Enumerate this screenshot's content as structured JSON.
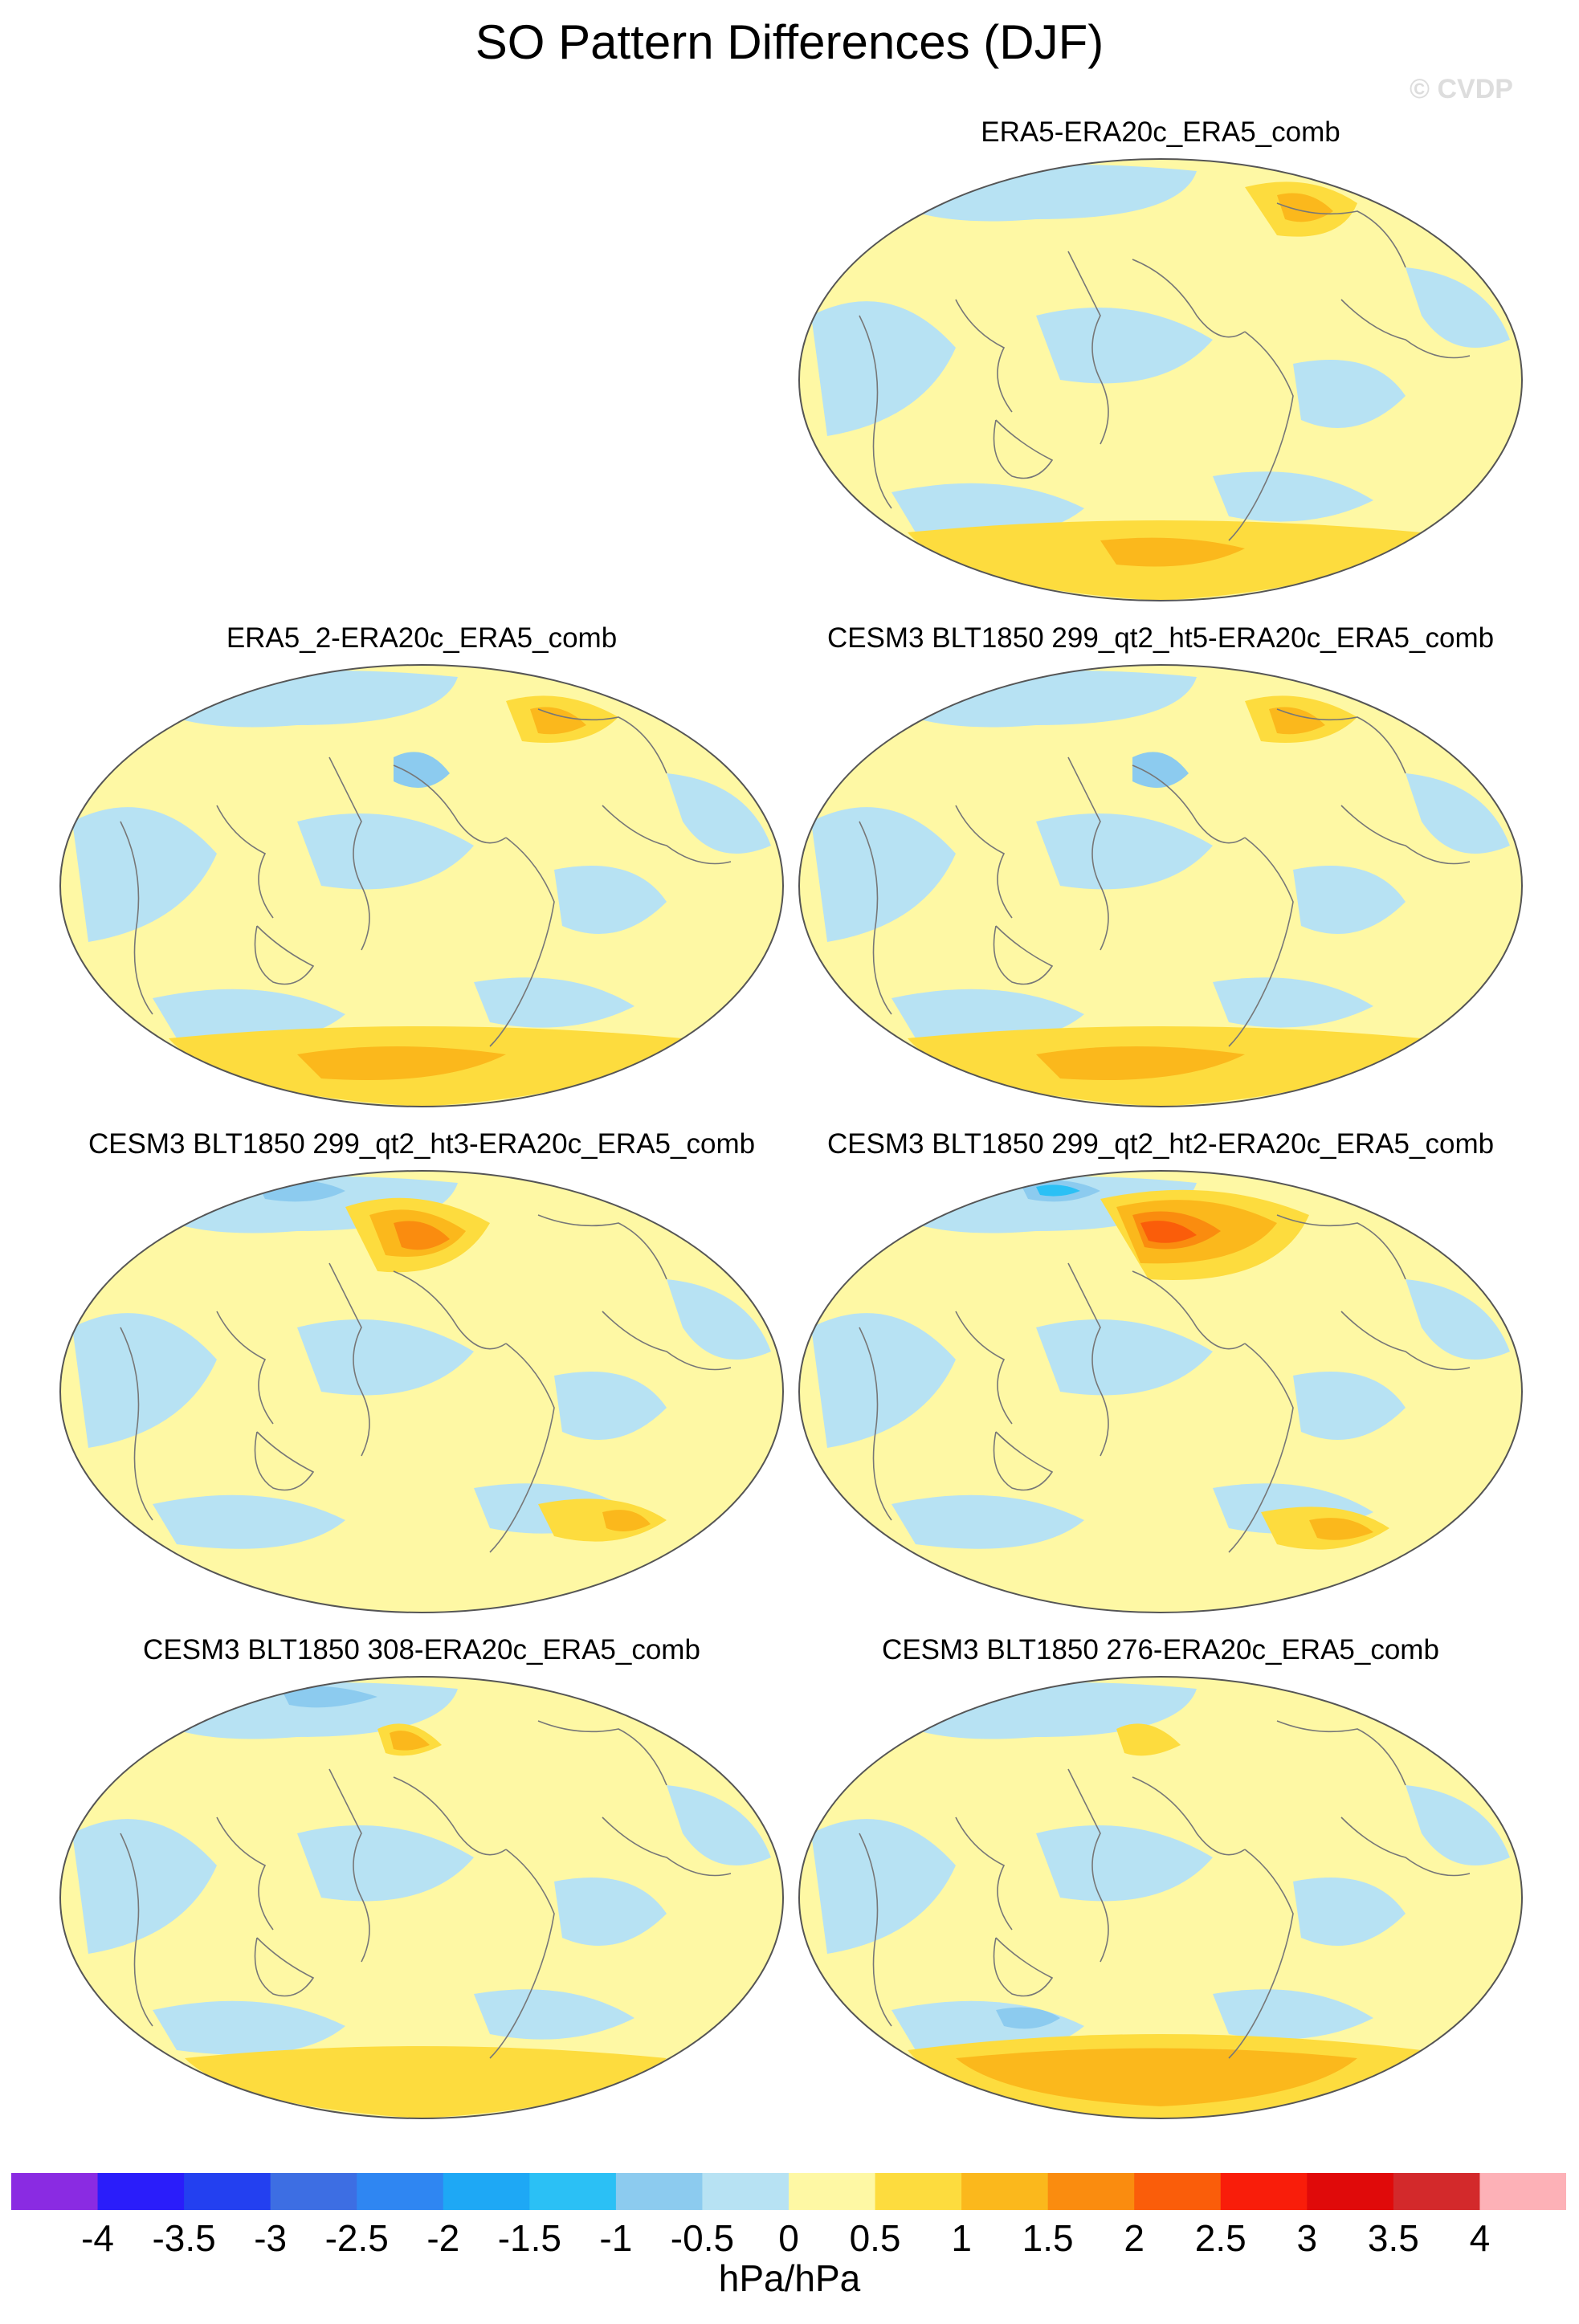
{
  "title": "SO Pattern Differences (DJF)",
  "watermark": "© CVDP",
  "panels": [
    {
      "label": "ERA5-ERA20c_ERA5_comb",
      "pattern": "weak"
    },
    {
      "label": "ERA5_2-ERA20c_ERA5_comb",
      "pattern": "mixed"
    },
    {
      "label": "CESM3 BLT1850 299_qt2_ht5-ERA20c_ERA5_comb",
      "pattern": "mixed"
    },
    {
      "label": "CESM3 BLT1850 299_qt2_ht3-ERA20c_ERA5_comb",
      "pattern": "alaska-high"
    },
    {
      "label": "CESM3 BLT1850 299_qt2_ht2-ERA20c_ERA5_comb",
      "pattern": "alaska-strong"
    },
    {
      "label": "CESM3 BLT1850 308-ERA20c_ERA5_comb",
      "pattern": "weak-north"
    },
    {
      "label": "CESM3 BLT1850 276-ERA20c_ERA5_comb",
      "pattern": "south-high"
    }
  ],
  "colorbar": {
    "colors": [
      "#8a2be2",
      "#2a1dfa",
      "#2340f0",
      "#3d6ee3",
      "#2f86f2",
      "#1ea8f5",
      "#2bc0f5",
      "#8ccbef",
      "#b7e2f3",
      "#fef8a4",
      "#fddc3e",
      "#fbb81c",
      "#fa8c0f",
      "#fa5d0a",
      "#f91d0a",
      "#e00a0a",
      "#d3292b",
      "#fdb1b7"
    ],
    "ticks": [
      "-4",
      "-3.5",
      "-3",
      "-2.5",
      "-2",
      "-1.5",
      "-1",
      "-0.5",
      "0",
      "0.5",
      "1",
      "1.5",
      "2",
      "2.5",
      "3",
      "3.5",
      "4"
    ],
    "units": "hPa/hPa"
  },
  "map_colors": {
    "neg1": "#b7e2f3",
    "neg2": "#8ccbef",
    "neg3": "#2bc0f5",
    "pos1": "#fef8a4",
    "pos2": "#fddc3e",
    "pos3": "#fbb81c",
    "pos4": "#fa8c0f",
    "pos5": "#fa5d0a",
    "coast": "#777777",
    "outline": "#555555"
  }
}
